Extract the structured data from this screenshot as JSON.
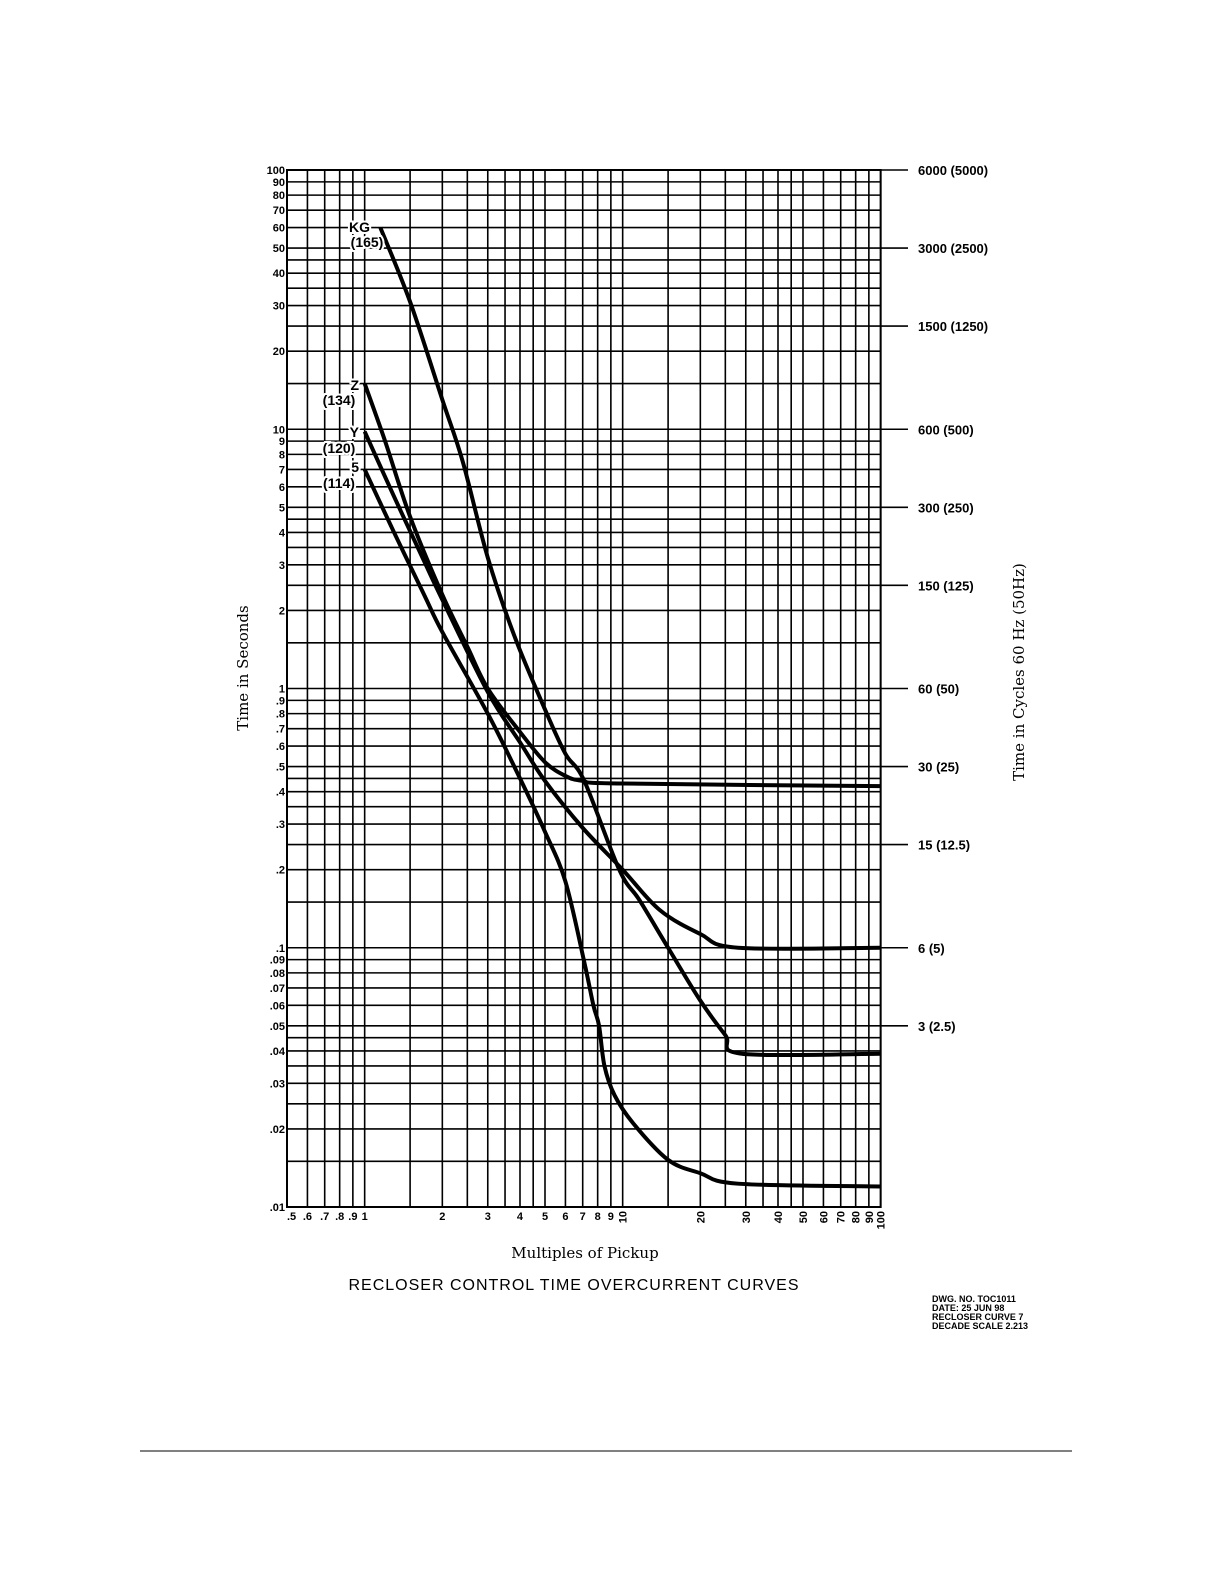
{
  "chart_data": {
    "type": "line",
    "title": "RECLOSER CONTROL TIME OVERCURRENT CURVES",
    "xlabel": "Multiples of Pickup",
    "ylabel": "Time in Seconds",
    "y2label": "Time in Cycles 60 Hz (50Hz)",
    "xscale": "log",
    "yscale": "log",
    "xlim": [
      0.5,
      100
    ],
    "ylim": [
      0.01,
      100
    ],
    "grid": true,
    "x_tick_labels": [
      {
        "v": 0.5,
        "t": ".5"
      },
      {
        "v": 0.6,
        "t": ".6"
      },
      {
        "v": 0.7,
        "t": ".7"
      },
      {
        "v": 0.8,
        "t": ".8"
      },
      {
        "v": 0.9,
        "t": ".9"
      },
      {
        "v": 1,
        "t": "1"
      },
      {
        "v": 2,
        "t": "2"
      },
      {
        "v": 3,
        "t": "3"
      },
      {
        "v": 4,
        "t": "4"
      },
      {
        "v": 5,
        "t": "5"
      },
      {
        "v": 6,
        "t": "6"
      },
      {
        "v": 7,
        "t": "7"
      },
      {
        "v": 8,
        "t": "8"
      },
      {
        "v": 9,
        "t": "9"
      },
      {
        "v": 10,
        "t": "10",
        "rot": true
      },
      {
        "v": 20,
        "t": "20",
        "rot": true
      },
      {
        "v": 30,
        "t": "30",
        "rot": true
      },
      {
        "v": 40,
        "t": "40",
        "rot": true
      },
      {
        "v": 50,
        "t": "50",
        "rot": true
      },
      {
        "v": 60,
        "t": "60",
        "rot": true
      },
      {
        "v": 70,
        "t": "70",
        "rot": true
      },
      {
        "v": 80,
        "t": "80",
        "rot": true
      },
      {
        "v": 90,
        "t": "90",
        "rot": true
      },
      {
        "v": 100,
        "t": "100",
        "rot": true
      }
    ],
    "y_tick_labels": [
      {
        "v": 100,
        "t": "100"
      },
      {
        "v": 90,
        "t": "90"
      },
      {
        "v": 80,
        "t": "80"
      },
      {
        "v": 70,
        "t": "70"
      },
      {
        "v": 60,
        "t": "60"
      },
      {
        "v": 50,
        "t": "50"
      },
      {
        "v": 40,
        "t": "40"
      },
      {
        "v": 30,
        "t": "30"
      },
      {
        "v": 20,
        "t": "20"
      },
      {
        "v": 10,
        "t": "10"
      },
      {
        "v": 9,
        "t": "9"
      },
      {
        "v": 8,
        "t": "8"
      },
      {
        "v": 7,
        "t": "7"
      },
      {
        "v": 6,
        "t": "6"
      },
      {
        "v": 5,
        "t": "5"
      },
      {
        "v": 4,
        "t": "4"
      },
      {
        "v": 3,
        "t": "3"
      },
      {
        "v": 2,
        "t": "2"
      },
      {
        "v": 1,
        "t": "1"
      },
      {
        "v": 0.9,
        "t": ".9"
      },
      {
        "v": 0.8,
        "t": ".8"
      },
      {
        "v": 0.7,
        "t": ".7"
      },
      {
        "v": 0.6,
        "t": ".6"
      },
      {
        "v": 0.5,
        "t": ".5"
      },
      {
        "v": 0.4,
        "t": ".4"
      },
      {
        "v": 0.3,
        "t": ".3"
      },
      {
        "v": 0.2,
        "t": ".2"
      },
      {
        "v": 0.1,
        "t": ".1"
      },
      {
        "v": 0.09,
        "t": ".09"
      },
      {
        "v": 0.08,
        "t": ".08"
      },
      {
        "v": 0.07,
        "t": ".07"
      },
      {
        "v": 0.06,
        "t": ".06"
      },
      {
        "v": 0.05,
        "t": ".05"
      },
      {
        "v": 0.04,
        "t": ".04"
      },
      {
        "v": 0.03,
        "t": ".03"
      },
      {
        "v": 0.02,
        "t": ".02"
      },
      {
        "v": 0.01,
        "t": ".01"
      }
    ],
    "y2_tick_labels": [
      {
        "v": 100,
        "t": "6000  (5000)"
      },
      {
        "v": 50,
        "t": "3000  (2500)"
      },
      {
        "v": 25,
        "t": "1500  (1250)"
      },
      {
        "v": 10,
        "t": "600  (500)"
      },
      {
        "v": 5,
        "t": "300  (250)"
      },
      {
        "v": 2.5,
        "t": "150  (125)"
      },
      {
        "v": 1,
        "t": "60  (50)"
      },
      {
        "v": 0.5,
        "t": "30  (25)"
      },
      {
        "v": 0.25,
        "t": "15  (12.5)"
      },
      {
        "v": 0.1,
        "t": "6  (5)"
      },
      {
        "v": 0.05,
        "t": "3  (2.5)"
      }
    ],
    "series": [
      {
        "name": "KG",
        "code": "(165)",
        "x": [
          1.15,
          1.5,
          2,
          2.4,
          3,
          3.8,
          5,
          6,
          7.1,
          9.7,
          11.6,
          15,
          19.9,
          25,
          29,
          100
        ],
        "y": [
          60,
          31,
          13,
          7.5,
          3.2,
          1.6,
          0.83,
          0.56,
          0.44,
          0.2,
          0.153,
          0.1,
          0.063,
          0.046,
          0.039,
          0.039
        ]
      },
      {
        "name": "Z",
        "code": "(134)",
        "x": [
          1,
          1.2,
          1.5,
          2,
          2.5,
          3,
          4,
          5,
          6,
          7,
          10,
          100
        ],
        "y": [
          15,
          9,
          4.6,
          2.3,
          1.45,
          1.0,
          0.68,
          0.52,
          0.46,
          0.44,
          0.43,
          0.42
        ]
      },
      {
        "name": "Y",
        "code": "(120)",
        "x": [
          1,
          1.3,
          1.7,
          2,
          3,
          4,
          5,
          7,
          10,
          13.9,
          20,
          28,
          100
        ],
        "y": [
          9.8,
          5.5,
          3.1,
          2.2,
          0.97,
          0.62,
          0.44,
          0.29,
          0.2,
          0.14,
          0.113,
          0.1,
          0.1
        ]
      },
      {
        "name": "5",
        "code": "(114)",
        "x": [
          1,
          1.3,
          1.7,
          2,
          3,
          4,
          5,
          6,
          7.1,
          7.7,
          8.1,
          8.5,
          9.3,
          11,
          15,
          20,
          28,
          100
        ],
        "y": [
          7,
          4,
          2.3,
          1.65,
          0.8,
          0.45,
          0.28,
          0.18,
          0.088,
          0.06,
          0.05,
          0.035,
          0.027,
          0.021,
          0.0152,
          0.0135,
          0.0123,
          0.012
        ]
      }
    ]
  },
  "drawing_info": [
    "DWG. NO. TOC1011",
    "DATE: 25 JUN 98",
    "RECLOSER CURVE 7",
    "DECADE SCALE 2.213"
  ]
}
